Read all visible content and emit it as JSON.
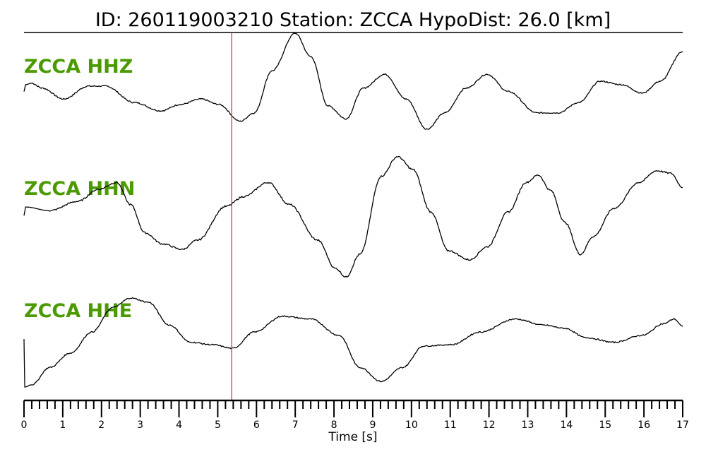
{
  "chart_data": {
    "type": "line",
    "title": "ID: 260119003210   Station: ZCCA   HypoDist:    26.0 [km]",
    "xlabel": "Time [s]",
    "xlim": [
      0,
      17
    ],
    "xticks": [
      "0",
      "1",
      "2",
      "3",
      "4",
      "5",
      "6",
      "7",
      "8",
      "9",
      "10",
      "11",
      "12",
      "13",
      "14",
      "15",
      "16",
      "17"
    ],
    "minor_tick_step": 0.2,
    "pick_marker_time": 5.36,
    "colors": {
      "trace": "#000000",
      "label": "#4a9a00",
      "pick": "#e8202a"
    },
    "amplitude_units": "normalized",
    "series": [
      {
        "name": "ZCCA HHZ",
        "t": [
          0,
          0.04,
          0.2,
          0.47,
          1.02,
          1.66,
          2.11,
          2.84,
          3.53,
          4.03,
          4.57,
          5.03,
          5.58,
          5.94,
          6.4,
          7.0,
          7.4,
          7.85,
          8.31,
          8.76,
          9.31,
          9.86,
          10.4,
          10.86,
          11.41,
          11.95,
          12.5,
          13.23,
          13.78,
          14.32,
          14.87,
          15.42,
          15.96,
          16.42,
          17
        ],
        "a": [
          -0.21,
          -0.07,
          -0.04,
          -0.14,
          -0.36,
          -0.1,
          -0.1,
          -0.43,
          -0.6,
          -0.47,
          -0.36,
          -0.47,
          -0.81,
          -0.64,
          0.21,
          0.97,
          0.5,
          -0.5,
          -0.76,
          -0.14,
          0.14,
          -0.36,
          -0.97,
          -0.64,
          -0.14,
          0.14,
          -0.21,
          -0.64,
          -0.64,
          -0.43,
          0,
          -0.07,
          -0.24,
          0,
          0.6
        ]
      },
      {
        "name": "ZCCA HHN",
        "t": [
          0,
          0.04,
          0.66,
          1.38,
          1.93,
          2.39,
          2.75,
          3.12,
          3.57,
          4.08,
          4.48,
          5.21,
          5.67,
          6.3,
          6.85,
          7.58,
          8.04,
          8.31,
          8.67,
          9.22,
          9.64,
          10.04,
          10.5,
          10.95,
          11.5,
          11.95,
          12.5,
          12.96,
          13.27,
          13.59,
          13.96,
          14.36,
          14.69,
          15.23,
          15.87,
          16.33,
          16.69,
          17
        ],
        "a": [
          0.02,
          0.16,
          0.1,
          0.25,
          0.45,
          0.56,
          0.2,
          -0.26,
          -0.44,
          -0.53,
          -0.38,
          0.17,
          0.33,
          0.56,
          0.2,
          -0.38,
          -0.84,
          -0.98,
          -0.61,
          0.66,
          0.98,
          0.77,
          0.08,
          -0.55,
          -0.7,
          -0.49,
          0.08,
          0.56,
          0.68,
          0.43,
          -0.09,
          -0.61,
          -0.32,
          0.14,
          0.56,
          0.75,
          0.71,
          0.48
        ]
      },
      {
        "name": "ZCCA HHE",
        "t": [
          0,
          0.02,
          0.2,
          0.66,
          1.2,
          1.75,
          2.3,
          2.75,
          3.21,
          3.75,
          4.3,
          4.85,
          5.39,
          5.94,
          6.67,
          7.4,
          8.13,
          8.67,
          9.22,
          9.77,
          10.31,
          11.04,
          11.77,
          12.68,
          13.41,
          13.96,
          14.5,
          15.23,
          15.96,
          16.51,
          16.78,
          17
        ],
        "a": [
          0.09,
          -0.94,
          -0.89,
          -0.52,
          -0.21,
          0.24,
          0.77,
          0.97,
          0.88,
          0.39,
          0.02,
          -0.03,
          -0.11,
          0.24,
          0.58,
          0.52,
          0.17,
          -0.52,
          -0.82,
          -0.52,
          -0.06,
          -0.03,
          0.24,
          0.52,
          0.39,
          0.32,
          0.12,
          0.02,
          0.17,
          0.42,
          0.52,
          0.36
        ]
      }
    ]
  }
}
